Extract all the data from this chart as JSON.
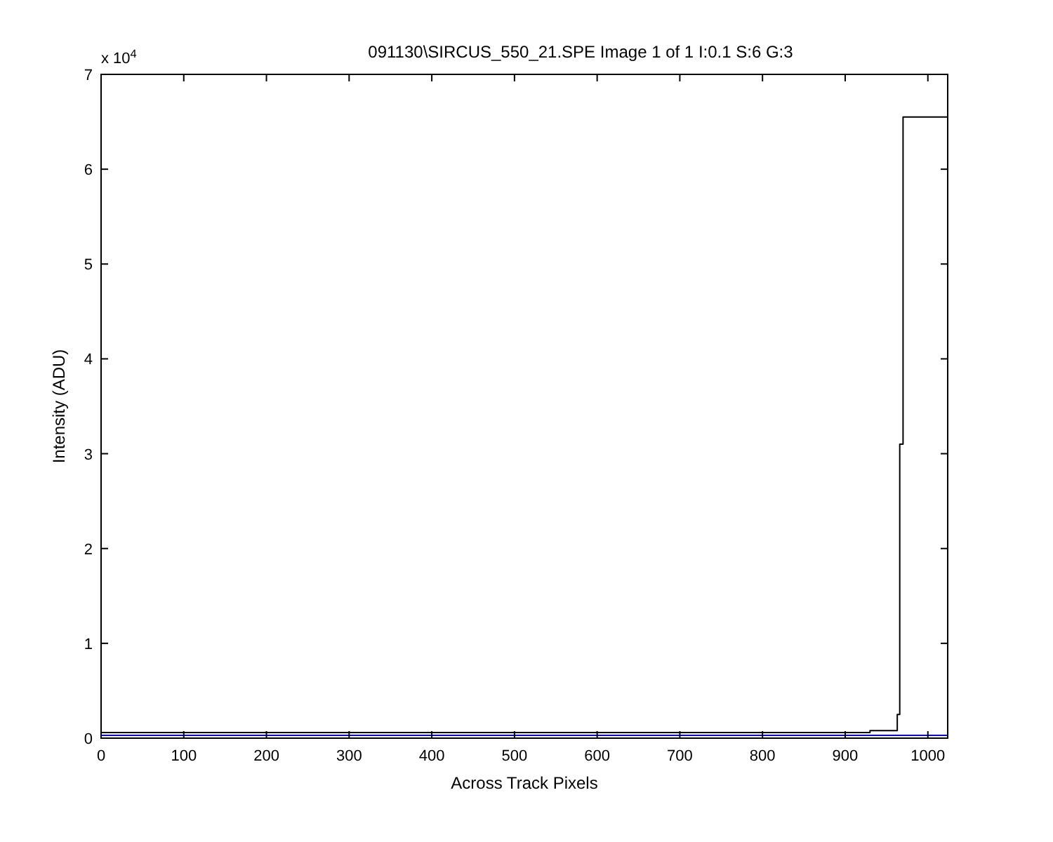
{
  "chart_data": {
    "type": "step",
    "title": "091130\\SIRCUS_550_21.SPE  Image 1 of 1  I:0.1  S:6  G:3",
    "xlabel": "Across Track Pixels",
    "ylabel": "Intensity (ADU)",
    "annotations": [
      "x 10$^{4}$"
    ],
    "series": [
      {
        "color": "#0000ff",
        "x": [
          0,
          1024
        ],
        "values": [
          0.03,
          0.03
        ]
      },
      {
        "color": "#000000",
        "x": [
          0,
          930,
          963,
          966,
          970,
          1024
        ],
        "values": [
          0.06,
          0.08,
          0.25,
          3.1,
          6.55,
          6.55
        ]
      }
    ],
    "xlim": [
      0,
      1024
    ],
    "xticks": [
      0,
      100,
      200,
      300,
      400,
      500,
      600,
      700,
      800,
      900,
      1000
    ],
    "ylim": [
      0,
      7
    ],
    "yticks": [
      0,
      1,
      2,
      3,
      4,
      5,
      6,
      7
    ],
    "grid": false
  }
}
